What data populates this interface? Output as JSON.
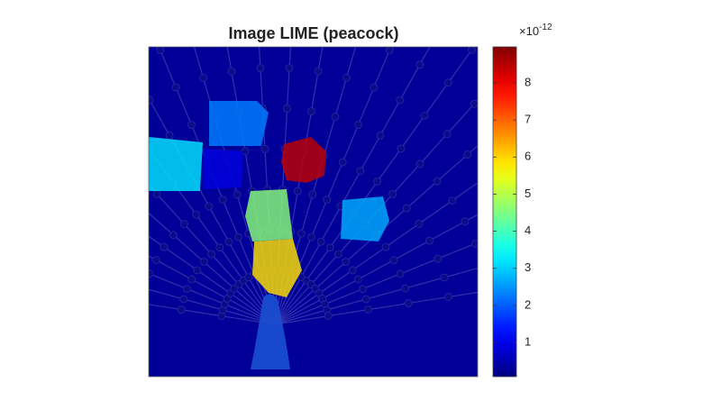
{
  "chart_data": {
    "type": "segment-map",
    "title": "Image LIME (peacock)",
    "segments": [
      0.3,
      2.3,
      3.2,
      0.9,
      8.4,
      4.6,
      5.9,
      2.7
    ],
    "clim": [
      0.08,
      8.97
    ],
    "colorbar_ticks": [
      1,
      2,
      3,
      4,
      5,
      6,
      7,
      8
    ],
    "colorbar_exponent": {
      "base": "×10",
      "power": "-12"
    },
    "colormap": "jet"
  }
}
